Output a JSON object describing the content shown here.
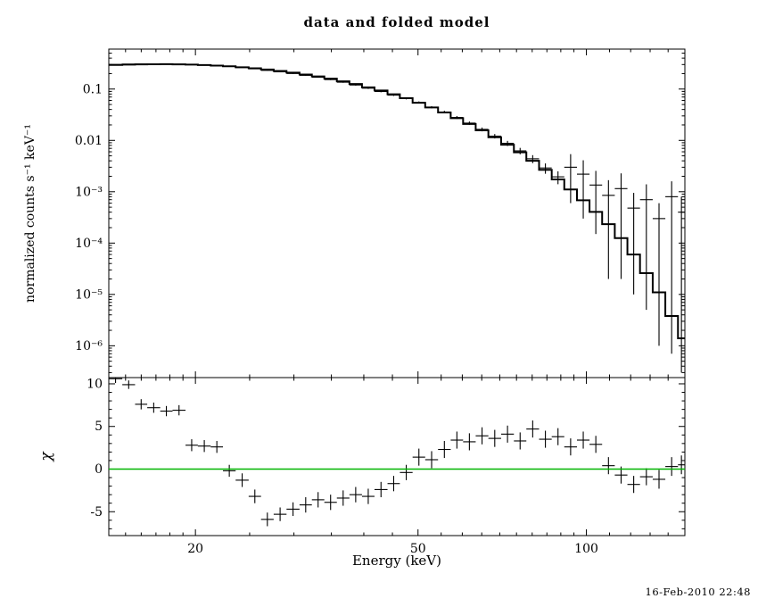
{
  "title": "data and folded model",
  "timestamp": "16-Feb-2010 22:48",
  "chart_data": {
    "type": "line",
    "title": "data and folded model",
    "xlabel": "Energy (keV)",
    "x_scale": "log",
    "xlim": [
      14,
      150
    ],
    "xticks": [
      {
        "value": 20,
        "label": "20"
      },
      {
        "value": 50,
        "label": "50"
      },
      {
        "value": 100,
        "label": "100"
      }
    ],
    "xticks_minor": [
      15,
      16,
      17,
      18,
      19,
      25,
      30,
      35,
      40,
      45,
      55,
      60,
      65,
      70,
      75,
      80,
      85,
      90,
      95,
      110,
      120,
      130,
      140
    ],
    "bin_edges": [
      14.0,
      14.8,
      15.6,
      16.4,
      17.3,
      18.2,
      19.2,
      20.2,
      21.3,
      22.4,
      23.6,
      24.9,
      26.2,
      27.6,
      29.1,
      30.7,
      32.3,
      34.0,
      35.8,
      37.7,
      39.7,
      41.8,
      44.1,
      46.4,
      48.9,
      51.5,
      54.3,
      57.2,
      60.2,
      63.4,
      66.8,
      70.4,
      74.2,
      78.1,
      82.3,
      86.7,
      91.3,
      96.2,
      101.3,
      106.7,
      112.4,
      118.4,
      124.7,
      131.4,
      138.4,
      145.8,
      150.0
    ],
    "top_panel": {
      "ylabel": "normalized counts s⁻¹ keV⁻¹",
      "y_scale": "log",
      "ylim": [
        2.4e-07,
        0.6
      ],
      "yticks": [
        {
          "value": 0.1,
          "label": "0.1"
        },
        {
          "value": 0.01,
          "label": "0.01"
        },
        {
          "value": 0.001,
          "label": "10⁻³"
        },
        {
          "value": 0.0001,
          "label": "10⁻⁴"
        },
        {
          "value": 1e-05,
          "label": "10⁻⁵"
        },
        {
          "value": 1e-06,
          "label": "10⁻⁶"
        }
      ],
      "series": [
        {
          "name": "data",
          "type": "errorbar",
          "y": [
            0.301,
            0.306,
            0.308,
            0.309,
            0.309,
            0.306,
            0.301,
            0.296,
            0.287,
            0.276,
            0.263,
            0.248,
            0.231,
            0.217,
            0.201,
            0.185,
            0.17,
            0.153,
            0.136,
            0.12,
            0.104,
            0.0896,
            0.0762,
            0.0655,
            0.055,
            0.0443,
            0.0357,
            0.028,
            0.0217,
            0.0164,
            0.0121,
            0.00878,
            0.00625,
            0.00438,
            0.0029,
            0.00195,
            0.003,
            0.0022,
            0.00135,
            0.00085,
            0.00115,
            0.00048,
            0.0007,
            0.0003,
            0.0008,
            0.0004
          ],
          "yerr": [
            0.003,
            0.003,
            0.003,
            0.003,
            0.003,
            0.003,
            0.003,
            0.003,
            0.003,
            0.003,
            0.0035,
            0.0035,
            0.0035,
            0.0035,
            0.0035,
            0.0035,
            0.0035,
            0.0035,
            0.0035,
            0.0035,
            0.0035,
            0.003,
            0.0028,
            0.0026,
            0.0024,
            0.0022,
            0.002,
            0.0018,
            0.0016,
            0.0014,
            0.0012,
            0.001,
            0.0009,
            0.00078,
            0.00066,
            0.00055,
            0.0024,
            0.0019,
            0.0012,
            0.00083,
            0.00113,
            0.00047,
            0.000695,
            0.000299,
            0.0007993,
            0.0003997
          ]
        },
        {
          "name": "folded model",
          "type": "step",
          "y": [
            0.295,
            0.3,
            0.303,
            0.304,
            0.305,
            0.302,
            0.299,
            0.294,
            0.286,
            0.277,
            0.266,
            0.254,
            0.24,
            0.225,
            0.209,
            0.192,
            0.176,
            0.159,
            0.141,
            0.125,
            0.108,
            0.0935,
            0.0791,
            0.0662,
            0.0541,
            0.0437,
            0.0349,
            0.0271,
            0.0209,
            0.0157,
            0.0115,
            0.00825,
            0.00586,
            0.00401,
            0.00267,
            0.00174,
            0.00111,
            0.00068,
            0.000404,
            0.000233,
            0.000125,
            6e-05,
            2.6e-05,
            1.1e-05,
            3.8e-06,
            1.4e-06
          ]
        }
      ]
    },
    "bottom_panel": {
      "ylabel": "χ",
      "y_scale": "linear",
      "ylim": [
        -7.8,
        10.73
      ],
      "yticks": [
        {
          "value": 10,
          "label": "10"
        },
        {
          "value": 5,
          "label": "5"
        },
        {
          "value": 0,
          "label": "0"
        },
        {
          "value": -5,
          "label": "-5"
        }
      ],
      "zero_line": {
        "value": 0,
        "color": "#00b400"
      },
      "series": [
        {
          "name": "chi residuals",
          "type": "errorbar",
          "y": [
            10.6,
            9.9,
            7.6,
            7.2,
            6.8,
            6.9,
            2.8,
            2.7,
            2.6,
            -0.2,
            -1.3,
            -3.2,
            -5.9,
            -5.3,
            -4.7,
            -4.2,
            -3.6,
            -3.9,
            -3.4,
            -3.0,
            -3.2,
            -2.4,
            -1.7,
            -0.4,
            1.4,
            1.1,
            2.3,
            3.4,
            3.2,
            3.9,
            3.6,
            4.1,
            3.3,
            4.7,
            3.5,
            3.8,
            2.6,
            3.4,
            2.9,
            0.4,
            -0.7,
            -1.8,
            -0.9,
            -1.2,
            0.3,
            0.5
          ],
          "yerr": [
            0.5,
            0.5,
            0.6,
            0.6,
            0.6,
            0.6,
            0.7,
            0.7,
            0.7,
            0.7,
            0.8,
            0.8,
            0.8,
            0.8,
            0.8,
            0.9,
            0.9,
            0.9,
            0.9,
            0.9,
            0.9,
            0.9,
            0.9,
            0.9,
            1.0,
            1.0,
            1.0,
            1.0,
            1.0,
            1.0,
            1.0,
            1.0,
            1.0,
            1.0,
            1.0,
            1.0,
            1.0,
            1.0,
            1.0,
            1.0,
            1.0,
            1.0,
            1.0,
            1.1,
            1.1,
            1.1
          ]
        }
      ]
    }
  }
}
